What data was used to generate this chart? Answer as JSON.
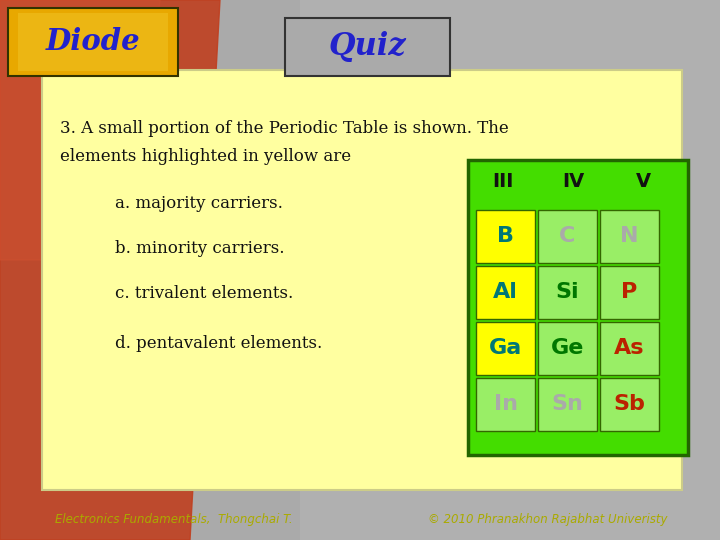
{
  "title": "Quiz",
  "diode_label": "Diode",
  "bg_color": "#ffffa0",
  "question_text_line1": "3. A small portion of the Periodic Table is shown. The",
  "question_text_line2": "elements highlighted in yellow are",
  "answers": [
    "a. majority carriers.",
    "b. minority carriers.",
    "c. trivalent elements.",
    "d. pentavalent elements."
  ],
  "footer_left": "Electronics Fundamentals,  Thongchai T.",
  "footer_right": "© 2010 Phranakhon Rajabhat Univeristy",
  "headers": [
    "III",
    "IV",
    "V"
  ],
  "elements": [
    [
      "B",
      "C",
      "N"
    ],
    [
      "Al",
      "Si",
      "P"
    ],
    [
      "Ga",
      "Ge",
      "As"
    ],
    [
      "In",
      "Sn",
      "Sb"
    ]
  ],
  "element_colors": [
    [
      "#007777",
      "#aaaaaa",
      "#aaaaaa"
    ],
    [
      "#007777",
      "#007700",
      "#bb2200"
    ],
    [
      "#007777",
      "#007700",
      "#bb2200"
    ],
    [
      "#aaaaaa",
      "#aaaaaa",
      "#bb2200"
    ]
  ],
  "cell_bg_colors": [
    [
      "#ffff00",
      "#99ee66",
      "#99ee66"
    ],
    [
      "#ffff00",
      "#99ee66",
      "#99ee66"
    ],
    [
      "#ffff00",
      "#99ee66",
      "#99ee66"
    ],
    [
      "#99ee66",
      "#99ee66",
      "#99ee66"
    ]
  ],
  "title_color": "#2222cc",
  "diode_text_color": "#2222cc",
  "table_green": "#44dd00",
  "header_color": "#111111",
  "text_color": "#111111",
  "footer_color": "#aaaa00"
}
